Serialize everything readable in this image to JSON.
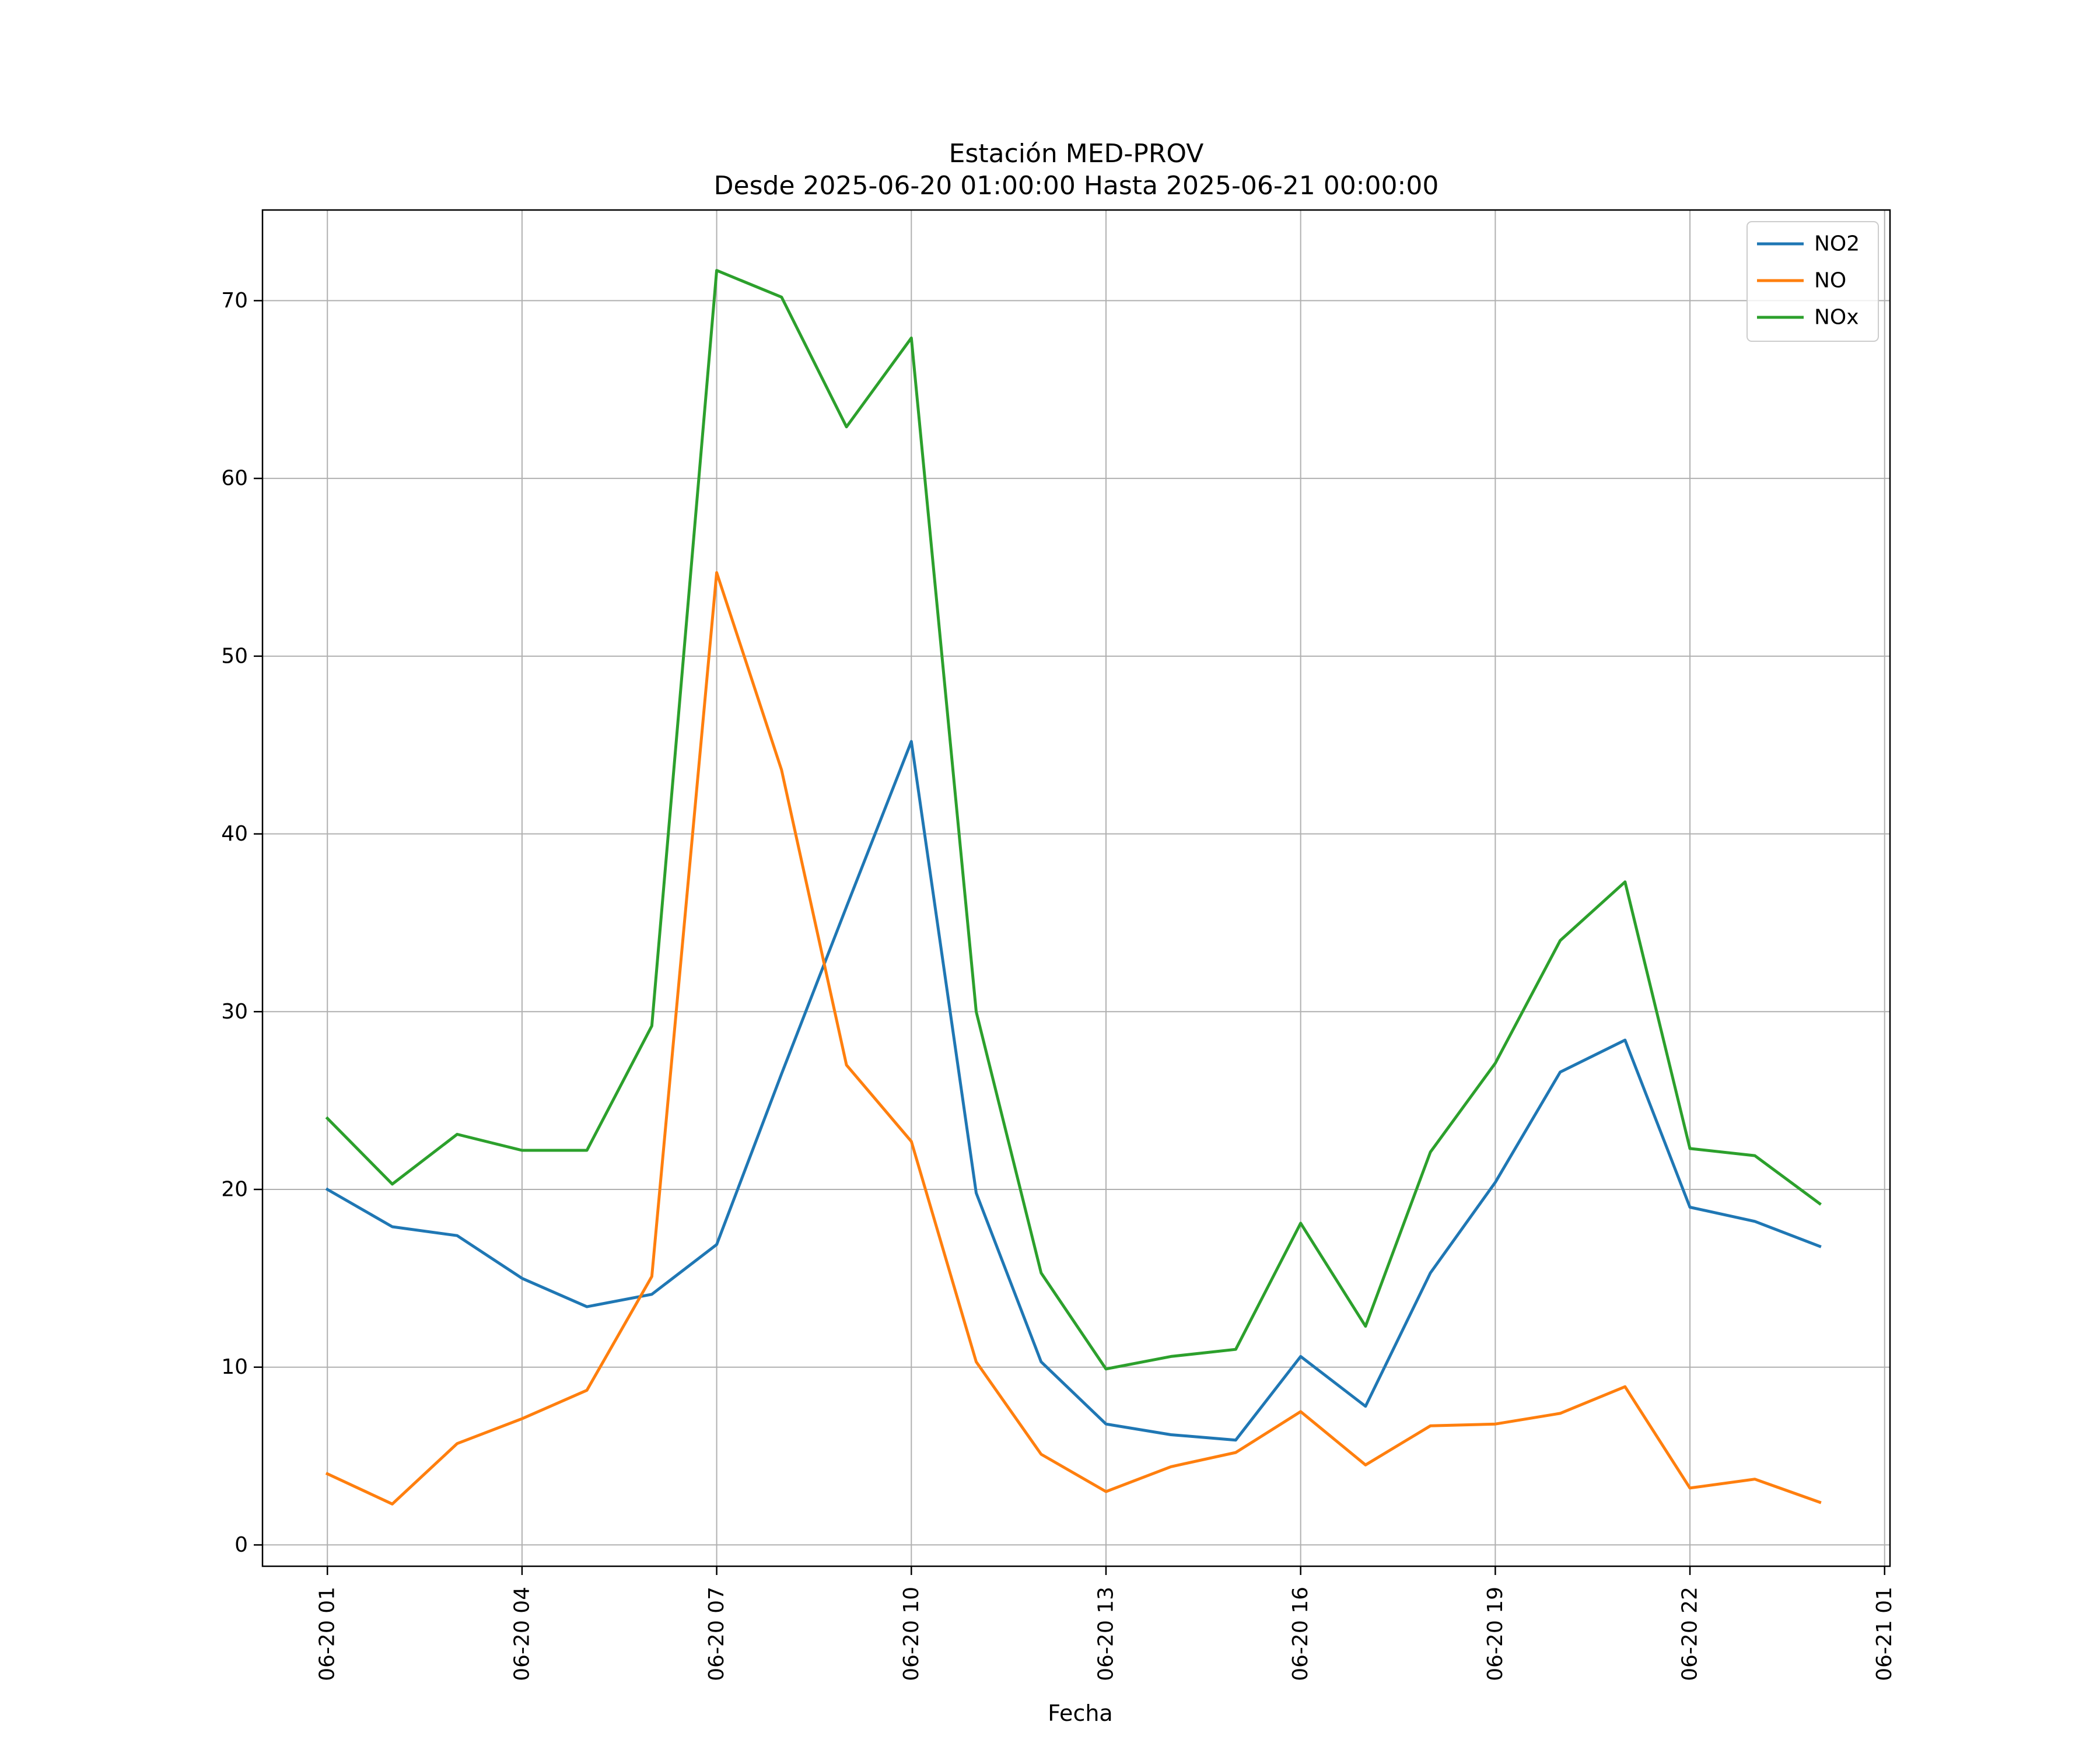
{
  "chart_data": {
    "type": "line",
    "title": "Estación MED-PROV",
    "subtitle": "Desde 2025-06-20 01:00:00 Hasta 2025-06-21 00:00:00",
    "xlabel": "Fecha",
    "ylabel": "",
    "x": [
      "2025-06-20 01:00",
      "2025-06-20 02:00",
      "2025-06-20 03:00",
      "2025-06-20 04:00",
      "2025-06-20 05:00",
      "2025-06-20 06:00",
      "2025-06-20 07:00",
      "2025-06-20 08:00",
      "2025-06-20 09:00",
      "2025-06-20 10:00",
      "2025-06-20 11:00",
      "2025-06-20 12:00",
      "2025-06-20 13:00",
      "2025-06-20 14:00",
      "2025-06-20 15:00",
      "2025-06-20 16:00",
      "2025-06-20 17:00",
      "2025-06-20 18:00",
      "2025-06-20 19:00",
      "2025-06-20 20:00",
      "2025-06-20 21:00",
      "2025-06-20 22:00",
      "2025-06-20 23:00",
      "2025-06-21 00:00"
    ],
    "x_range": [
      "2025-06-20 00:00",
      "2025-06-21 01:05"
    ],
    "xticks": [
      "06-20 01",
      "06-20 04",
      "06-20 07",
      "06-20 10",
      "06-20 13",
      "06-20 16",
      "06-20 19",
      "06-20 22",
      "06-21 01"
    ],
    "xtick_values": [
      "2025-06-20 01:00",
      "2025-06-20 04:00",
      "2025-06-20 07:00",
      "2025-06-20 10:00",
      "2025-06-20 13:00",
      "2025-06-20 16:00",
      "2025-06-20 19:00",
      "2025-06-20 22:00",
      "2025-06-21 01:00"
    ],
    "yticks": [
      0,
      10,
      20,
      30,
      40,
      50,
      60,
      70
    ],
    "ylim": [
      -1.2,
      75.1
    ],
    "grid": true,
    "legend_position": "top-right",
    "series": [
      {
        "name": "NO2",
        "color": "#1f77b4",
        "values": [
          20.0,
          17.9,
          17.4,
          15.0,
          13.4,
          14.1,
          16.9,
          26.5,
          35.9,
          45.2,
          19.8,
          10.3,
          6.8,
          6.2,
          5.9,
          10.6,
          7.8,
          15.3,
          20.4,
          26.6,
          28.4,
          19.0,
          18.2,
          16.8
        ]
      },
      {
        "name": "NO",
        "color": "#ff7f0e",
        "values": [
          4.0,
          2.3,
          5.7,
          7.1,
          8.7,
          15.1,
          54.7,
          43.6,
          27.0,
          22.7,
          10.3,
          5.1,
          3.0,
          4.4,
          5.2,
          7.5,
          4.5,
          6.7,
          6.8,
          7.4,
          8.9,
          3.2,
          3.7,
          2.4
        ]
      },
      {
        "name": "NOx",
        "color": "#2ca02c",
        "values": [
          24.0,
          20.3,
          23.1,
          22.2,
          22.2,
          29.2,
          71.7,
          70.2,
          62.9,
          67.9,
          30.0,
          15.3,
          9.9,
          10.6,
          11.0,
          18.1,
          12.3,
          22.1,
          27.1,
          34.0,
          37.3,
          22.3,
          21.9,
          19.2
        ]
      }
    ]
  }
}
